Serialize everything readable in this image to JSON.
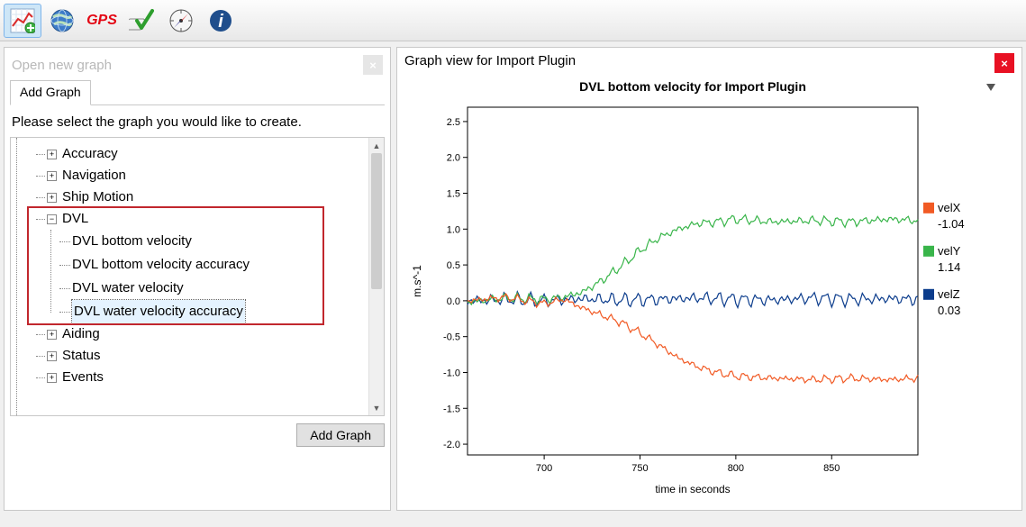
{
  "toolbar": {
    "items": [
      {
        "name": "graph-icon",
        "active": true
      },
      {
        "name": "globe-icon",
        "active": false
      },
      {
        "name": "gps-icon",
        "active": false,
        "label": "GPS",
        "color": "#e30613"
      },
      {
        "name": "check-icon",
        "active": false
      },
      {
        "name": "compass-icon",
        "active": false
      },
      {
        "name": "info-icon",
        "active": false
      }
    ]
  },
  "leftPanel": {
    "openHeader": "Open new graph",
    "tab": "Add Graph",
    "prompt": "Please select the graph you would like to create.",
    "tree": [
      {
        "label": "Accuracy",
        "expandable": true,
        "expanded": false
      },
      {
        "label": "Navigation",
        "expandable": true,
        "expanded": false
      },
      {
        "label": "Ship Motion",
        "expandable": true,
        "expanded": false
      },
      {
        "label": "DVL",
        "expandable": true,
        "expanded": true,
        "children": [
          {
            "label": "DVL bottom velocity"
          },
          {
            "label": "DVL bottom velocity accuracy"
          },
          {
            "label": "DVL water velocity"
          },
          {
            "label": "DVL water velocity accuracy",
            "selected": true
          }
        ]
      },
      {
        "label": "Aiding",
        "expandable": true,
        "expanded": false
      },
      {
        "label": "Status",
        "expandable": true,
        "expanded": false
      },
      {
        "label": "Events",
        "expandable": true,
        "expanded": false
      }
    ],
    "addButton": "Add Graph",
    "highlightColor": "#c1272d"
  },
  "graphPanel": {
    "header": "Graph view for Import Plugin",
    "closeColor": "#e81123"
  },
  "chart": {
    "title": "DVL bottom velocity for Import Plugin",
    "title_fontsize": 14,
    "title_weight": "bold",
    "xlabel": "time in seconds",
    "ylabel": "m.s^-1",
    "label_fontsize": 12,
    "background_color": "#ffffff",
    "plot_bg": "#ffffff",
    "axis_color": "#000000",
    "tick_fontsize": 11,
    "xlim": [
      660,
      895
    ],
    "ylim": [
      -2.15,
      2.7
    ],
    "xticks": [
      700,
      750,
      800,
      850
    ],
    "yticks": [
      -2.0,
      -1.5,
      -1.0,
      -0.5,
      0.0,
      0.5,
      1.0,
      1.5,
      2.0,
      2.5
    ],
    "legend": {
      "position": "right",
      "fontsize": 13,
      "items": [
        {
          "name": "velX",
          "color": "#f15a24",
          "value": "-1.04"
        },
        {
          "name": "velY",
          "color": "#39b54a",
          "value": "1.14"
        },
        {
          "name": "velZ",
          "color": "#0b3c8c",
          "value": "0.03"
        }
      ]
    },
    "series": {
      "velX": {
        "color": "#f15a24",
        "line_width": 1.2,
        "noise_amp": 0.06,
        "noise_scale": 2.2,
        "base": [
          [
            660,
            0.0
          ],
          [
            680,
            0.05
          ],
          [
            700,
            -0.04
          ],
          [
            710,
            0.02
          ],
          [
            720,
            -0.1
          ],
          [
            730,
            -0.2
          ],
          [
            740,
            -0.3
          ],
          [
            750,
            -0.45
          ],
          [
            760,
            -0.62
          ],
          [
            770,
            -0.8
          ],
          [
            780,
            -0.92
          ],
          [
            790,
            -1.0
          ],
          [
            800,
            -1.05
          ],
          [
            820,
            -1.08
          ],
          [
            840,
            -1.1
          ],
          [
            860,
            -1.08
          ],
          [
            880,
            -1.1
          ],
          [
            895,
            -1.08
          ]
        ]
      },
      "velY": {
        "color": "#39b54a",
        "line_width": 1.2,
        "noise_amp": 0.07,
        "noise_scale": 2.0,
        "base": [
          [
            660,
            -0.02
          ],
          [
            680,
            0.04
          ],
          [
            700,
            0.02
          ],
          [
            710,
            0.05
          ],
          [
            720,
            0.12
          ],
          [
            730,
            0.28
          ],
          [
            740,
            0.48
          ],
          [
            750,
            0.7
          ],
          [
            760,
            0.88
          ],
          [
            770,
            1.0
          ],
          [
            780,
            1.08
          ],
          [
            790,
            1.1
          ],
          [
            800,
            1.14
          ],
          [
            820,
            1.1
          ],
          [
            840,
            1.12
          ],
          [
            860,
            1.1
          ],
          [
            880,
            1.14
          ],
          [
            895,
            1.12
          ]
        ]
      },
      "velZ": {
        "color": "#0b3c8c",
        "line_width": 1.2,
        "noise_amp": 0.1,
        "noise_scale": 4.5,
        "base": [
          [
            660,
            0.0
          ],
          [
            680,
            0.02
          ],
          [
            700,
            0.0
          ],
          [
            720,
            0.03
          ],
          [
            740,
            0.01
          ],
          [
            760,
            0.02
          ],
          [
            780,
            0.04
          ],
          [
            800,
            0.02
          ],
          [
            820,
            0.01
          ],
          [
            840,
            0.04
          ],
          [
            860,
            0.02
          ],
          [
            880,
            0.03
          ],
          [
            895,
            0.02
          ]
        ]
      }
    }
  }
}
